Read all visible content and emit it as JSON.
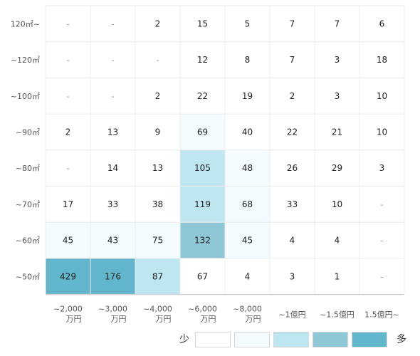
{
  "chart_data": {
    "type": "heatmap",
    "title": "",
    "xlabel": "",
    "ylabel": "",
    "rows": [
      "120㎡~",
      "~120㎡",
      "~100㎡",
      "~90㎡",
      "~80㎡",
      "~70㎡",
      "~60㎡",
      "~50㎡"
    ],
    "columns": [
      [
        "~2,000",
        "万円"
      ],
      [
        "~3,000",
        "万円"
      ],
      [
        "~4,000",
        "万円"
      ],
      [
        "~6,000",
        "万円"
      ],
      [
        "~8,000",
        "万円"
      ],
      [
        "~1億円"
      ],
      [
        "~1.5億円"
      ],
      [
        "1.5億円~"
      ]
    ],
    "values": [
      [
        "-",
        "-",
        "2",
        "15",
        "5",
        "7",
        "7",
        "6"
      ],
      [
        "-",
        "-",
        "-",
        "12",
        "8",
        "7",
        "3",
        "18"
      ],
      [
        "-",
        "-",
        "2",
        "22",
        "19",
        "2",
        "3",
        "10"
      ],
      [
        "2",
        "13",
        "9",
        "69",
        "40",
        "22",
        "21",
        "10"
      ],
      [
        "-",
        "14",
        "13",
        "105",
        "48",
        "26",
        "29",
        "3"
      ],
      [
        "17",
        "33",
        "38",
        "119",
        "68",
        "33",
        "10",
        "-"
      ],
      [
        "45",
        "43",
        "75",
        "132",
        "45",
        "4",
        "4",
        "-"
      ],
      [
        "429",
        "176",
        "87",
        "67",
        "4",
        "3",
        "1",
        "-"
      ]
    ],
    "levels": [
      [
        0,
        0,
        0,
        0,
        0,
        0,
        0,
        0
      ],
      [
        0,
        0,
        0,
        0,
        0,
        0,
        0,
        0
      ],
      [
        0,
        0,
        0,
        0,
        0,
        0,
        0,
        0
      ],
      [
        0,
        0,
        0,
        1,
        0,
        0,
        0,
        0
      ],
      [
        0,
        0,
        0,
        2,
        1,
        0,
        0,
        0
      ],
      [
        0,
        0,
        0,
        2,
        1,
        0,
        0,
        0
      ],
      [
        1,
        1,
        1,
        3,
        1,
        0,
        0,
        0
      ],
      [
        4,
        4,
        2,
        0,
        0,
        0,
        0,
        0
      ]
    ],
    "legend": {
      "low_label": "少",
      "high_label": "多",
      "placement": "bottom-right"
    },
    "scale_colors": [
      "#ffffff",
      "#f4fbfe",
      "#bde6f0",
      "#8fc7d6",
      "#62b6cb"
    ],
    "grid": true,
    "grid_color": "#ececec",
    "label_color": "#555555",
    "value_color": "#222222"
  }
}
